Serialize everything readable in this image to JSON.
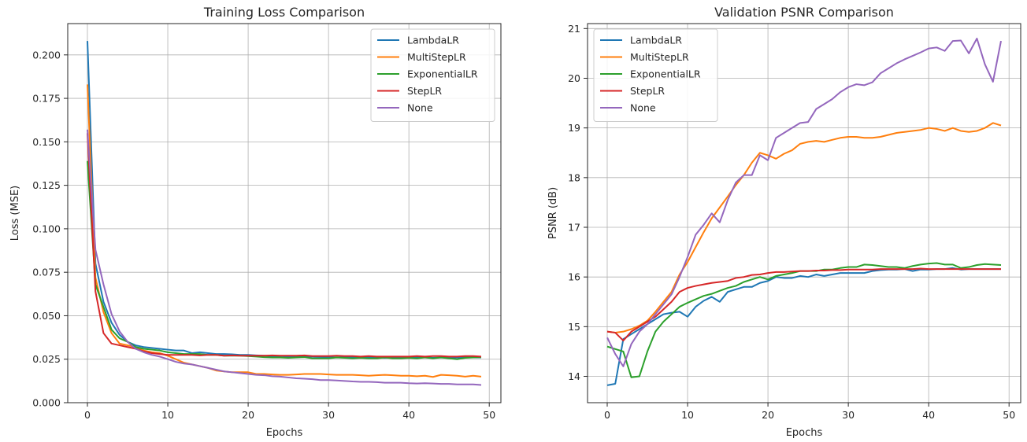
{
  "chart_data": [
    {
      "type": "line",
      "title": "Training Loss Comparison",
      "xlabel": "Epochs",
      "ylabel": "Loss (MSE)",
      "xlim": [
        -2.45,
        51.45
      ],
      "ylim": [
        0,
        0.218
      ],
      "xticks": [
        0,
        10,
        20,
        30,
        40,
        50
      ],
      "yticks": [
        0.0,
        0.025,
        0.05,
        0.075,
        0.1,
        0.125,
        0.15,
        0.175,
        0.2
      ],
      "ytick_labels": [
        "0.000",
        "0.025",
        "0.050",
        "0.075",
        "0.100",
        "0.125",
        "0.150",
        "0.175",
        "0.200"
      ],
      "xtick_labels": [
        "0",
        "10",
        "20",
        "30",
        "40",
        "50"
      ],
      "grid": true,
      "legend_position": "top-right",
      "x": [
        0,
        1,
        2,
        3,
        4,
        5,
        6,
        7,
        8,
        9,
        10,
        11,
        12,
        13,
        14,
        15,
        16,
        17,
        18,
        19,
        20,
        21,
        22,
        23,
        24,
        25,
        26,
        27,
        28,
        29,
        30,
        31,
        32,
        33,
        34,
        35,
        36,
        37,
        38,
        39,
        40,
        41,
        42,
        43,
        44,
        45,
        46,
        47,
        48,
        49
      ],
      "series": [
        {
          "name": "LambdaLR",
          "color": "#1f77b4",
          "values": [
            0.208,
            0.08,
            0.058,
            0.046,
            0.039,
            0.035,
            0.033,
            0.032,
            0.0315,
            0.031,
            0.0305,
            0.03,
            0.03,
            0.0285,
            0.029,
            0.0285,
            0.028,
            0.028,
            0.0278,
            0.0275,
            0.0275,
            0.0272,
            0.027,
            0.0268,
            0.0268,
            0.0266,
            0.0265,
            0.0265,
            0.0265,
            0.0263,
            0.0262,
            0.026,
            0.0262,
            0.026,
            0.026,
            0.0262,
            0.026,
            0.0258,
            0.026,
            0.026,
            0.0258,
            0.026,
            0.026,
            0.0258,
            0.026,
            0.0258,
            0.026,
            0.026,
            0.026,
            0.026
          ]
        },
        {
          "name": "MultiStepLR",
          "color": "#ff7f0e",
          "values": [
            0.183,
            0.072,
            0.052,
            0.04,
            0.034,
            0.033,
            0.032,
            0.03,
            0.029,
            0.0285,
            0.027,
            0.025,
            0.023,
            0.022,
            0.021,
            0.02,
            0.0185,
            0.018,
            0.0175,
            0.0175,
            0.0175,
            0.0165,
            0.0165,
            0.0162,
            0.016,
            0.016,
            0.0162,
            0.0165,
            0.0165,
            0.0165,
            0.0162,
            0.016,
            0.016,
            0.016,
            0.0158,
            0.0155,
            0.0158,
            0.016,
            0.0158,
            0.0155,
            0.0155,
            0.0152,
            0.0155,
            0.0148,
            0.016,
            0.0158,
            0.0155,
            0.015,
            0.0155,
            0.015
          ]
        },
        {
          "name": "ExponentialLR",
          "color": "#2ca02c",
          "values": [
            0.139,
            0.068,
            0.055,
            0.042,
            0.037,
            0.035,
            0.032,
            0.031,
            0.0305,
            0.03,
            0.029,
            0.0285,
            0.028,
            0.028,
            0.028,
            0.0275,
            0.0275,
            0.027,
            0.027,
            0.027,
            0.0268,
            0.0265,
            0.0262,
            0.026,
            0.026,
            0.0258,
            0.026,
            0.0262,
            0.0255,
            0.0255,
            0.0255,
            0.026,
            0.0258,
            0.0255,
            0.0258,
            0.0255,
            0.0255,
            0.026,
            0.0255,
            0.0255,
            0.0258,
            0.0255,
            0.026,
            0.0255,
            0.026,
            0.0255,
            0.025,
            0.0258,
            0.026,
            0.0262
          ]
        },
        {
          "name": "StepLR",
          "color": "#d62728",
          "values": [
            0.155,
            0.064,
            0.04,
            0.034,
            0.033,
            0.032,
            0.031,
            0.0295,
            0.0285,
            0.028,
            0.0275,
            0.0275,
            0.0275,
            0.0275,
            0.0272,
            0.0275,
            0.0275,
            0.027,
            0.0272,
            0.027,
            0.027,
            0.027,
            0.027,
            0.0272,
            0.027,
            0.027,
            0.027,
            0.0272,
            0.0268,
            0.0268,
            0.0268,
            0.027,
            0.0268,
            0.0268,
            0.0265,
            0.0268,
            0.0265,
            0.0265,
            0.0265,
            0.0265,
            0.0265,
            0.0268,
            0.0265,
            0.0268,
            0.0268,
            0.0265,
            0.0265,
            0.0268,
            0.0268,
            0.0265
          ]
        },
        {
          "name": "None",
          "color": "#9467bd",
          "values": [
            0.157,
            0.088,
            0.068,
            0.051,
            0.041,
            0.035,
            0.031,
            0.029,
            0.0275,
            0.0265,
            0.025,
            0.0235,
            0.0225,
            0.022,
            0.021,
            0.02,
            0.019,
            0.018,
            0.0175,
            0.017,
            0.0165,
            0.016,
            0.0158,
            0.0152,
            0.015,
            0.0145,
            0.014,
            0.0138,
            0.0135,
            0.013,
            0.013,
            0.0128,
            0.0125,
            0.0122,
            0.012,
            0.012,
            0.0118,
            0.0115,
            0.0115,
            0.0115,
            0.0112,
            0.011,
            0.0112,
            0.011,
            0.0108,
            0.0108,
            0.0105,
            0.0105,
            0.0105,
            0.0102
          ]
        }
      ]
    },
    {
      "type": "line",
      "title": "Validation PSNR Comparison",
      "xlabel": "Epochs",
      "ylabel": "PSNR (dB)",
      "xlim": [
        -2.45,
        51.45
      ],
      "ylim": [
        13.47,
        21.1
      ],
      "xticks": [
        0,
        10,
        20,
        30,
        40,
        50
      ],
      "yticks": [
        14,
        15,
        16,
        17,
        18,
        19,
        20,
        21
      ],
      "ytick_labels": [
        "14",
        "15",
        "16",
        "17",
        "18",
        "19",
        "20",
        "21"
      ],
      "xtick_labels": [
        "0",
        "10",
        "20",
        "30",
        "40",
        "50"
      ],
      "grid": true,
      "legend_position": "top-left",
      "x": [
        0,
        1,
        2,
        3,
        4,
        5,
        6,
        7,
        8,
        9,
        10,
        11,
        12,
        13,
        14,
        15,
        16,
        17,
        18,
        19,
        20,
        21,
        22,
        23,
        24,
        25,
        26,
        27,
        28,
        29,
        30,
        31,
        32,
        33,
        34,
        35,
        36,
        37,
        38,
        39,
        40,
        41,
        42,
        43,
        44,
        45,
        46,
        47,
        48,
        49
      ],
      "series": [
        {
          "name": "LambdaLR",
          "color": "#1f77b4",
          "values": [
            13.82,
            13.85,
            14.75,
            14.85,
            14.95,
            15.05,
            15.15,
            15.25,
            15.28,
            15.3,
            15.2,
            15.4,
            15.52,
            15.6,
            15.5,
            15.7,
            15.75,
            15.8,
            15.8,
            15.88,
            15.92,
            16.0,
            15.98,
            15.98,
            16.02,
            16.0,
            16.05,
            16.02,
            16.05,
            16.08,
            16.08,
            16.08,
            16.08,
            16.12,
            16.14,
            16.15,
            16.15,
            16.16,
            16.12,
            16.15,
            16.15,
            16.16,
            16.16,
            16.18,
            16.15,
            16.16,
            16.16,
            16.16,
            16.16,
            16.16
          ]
        },
        {
          "name": "MultiStepLR",
          "color": "#ff7f0e",
          "values": [
            14.9,
            14.88,
            14.9,
            14.95,
            15.02,
            15.12,
            15.3,
            15.5,
            15.7,
            16.05,
            16.3,
            16.6,
            16.9,
            17.18,
            17.4,
            17.62,
            17.85,
            18.05,
            18.3,
            18.5,
            18.45,
            18.38,
            18.48,
            18.55,
            18.68,
            18.72,
            18.74,
            18.72,
            18.76,
            18.8,
            18.82,
            18.82,
            18.8,
            18.8,
            18.82,
            18.86,
            18.9,
            18.92,
            18.94,
            18.96,
            19.0,
            18.98,
            18.94,
            19.0,
            18.94,
            18.92,
            18.94,
            19.0,
            19.1,
            19.05
          ]
        },
        {
          "name": "ExponentialLR",
          "color": "#2ca02c",
          "values": [
            14.6,
            14.55,
            14.5,
            13.98,
            14.0,
            14.5,
            14.9,
            15.1,
            15.25,
            15.4,
            15.48,
            15.55,
            15.62,
            15.66,
            15.72,
            15.78,
            15.82,
            15.9,
            15.95,
            16.0,
            15.95,
            16.02,
            16.05,
            16.08,
            16.12,
            16.12,
            16.12,
            16.15,
            16.15,
            16.18,
            16.2,
            16.2,
            16.25,
            16.24,
            16.22,
            16.2,
            16.2,
            16.18,
            16.22,
            16.25,
            16.27,
            16.28,
            16.25,
            16.25,
            16.18,
            16.2,
            16.24,
            16.26,
            16.25,
            16.24
          ]
        },
        {
          "name": "StepLR",
          "color": "#d62728",
          "values": [
            14.9,
            14.88,
            14.72,
            14.9,
            15.0,
            15.1,
            15.2,
            15.35,
            15.5,
            15.7,
            15.78,
            15.82,
            15.85,
            15.88,
            15.9,
            15.92,
            15.98,
            16.0,
            16.04,
            16.05,
            16.08,
            16.1,
            16.1,
            16.11,
            16.12,
            16.12,
            16.13,
            16.13,
            16.14,
            16.14,
            16.15,
            16.15,
            16.15,
            16.15,
            16.16,
            16.16,
            16.16,
            16.16,
            16.16,
            16.17,
            16.16,
            16.16,
            16.16,
            16.16,
            16.16,
            16.16,
            16.16,
            16.16,
            16.16,
            16.16
          ]
        },
        {
          "name": "None",
          "color": "#9467bd",
          "values": [
            14.78,
            14.45,
            14.2,
            14.65,
            14.9,
            15.05,
            15.25,
            15.45,
            15.65,
            16.0,
            16.4,
            16.85,
            17.05,
            17.28,
            17.1,
            17.55,
            17.9,
            18.05,
            18.05,
            18.45,
            18.35,
            18.8,
            18.9,
            19.0,
            19.1,
            19.12,
            19.38,
            19.48,
            19.58,
            19.72,
            19.82,
            19.88,
            19.86,
            19.92,
            20.1,
            20.2,
            20.3,
            20.38,
            20.45,
            20.52,
            20.6,
            20.62,
            20.55,
            20.75,
            20.76,
            20.5,
            20.8,
            20.28,
            19.93,
            20.75
          ]
        }
      ]
    }
  ]
}
